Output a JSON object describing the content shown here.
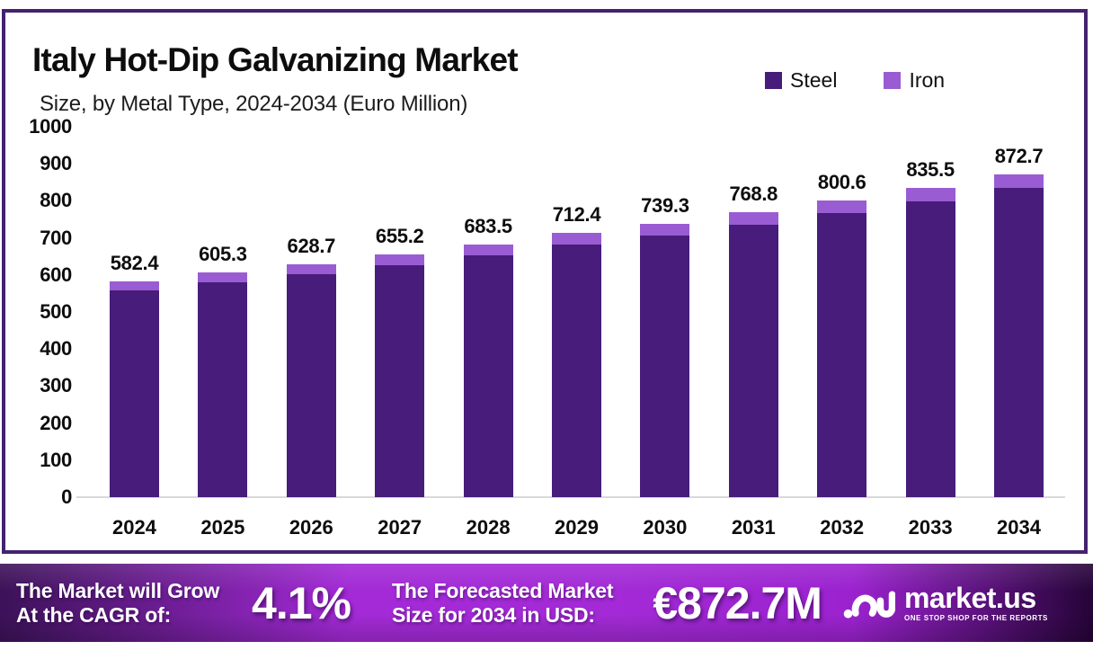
{
  "header": {
    "title": "Italy Hot-Dip Galvanizing Market",
    "subtitle": "Size, by Metal Type, 2024-2034 (Euro Million)"
  },
  "card": {
    "border_color": "#44226f"
  },
  "legend": [
    {
      "label": "Steel",
      "color": "#481c7a"
    },
    {
      "label": "Iron",
      "color": "#9a5cd2"
    }
  ],
  "chart_data": {
    "type": "bar",
    "stacked": true,
    "title": "Italy Hot-Dip Galvanizing Market Size, by Metal Type, 2024-2034 (Euro Million)",
    "xlabel": "",
    "ylabel": "",
    "ylim": [
      0,
      1000
    ],
    "yticks": [
      0,
      100,
      200,
      300,
      400,
      500,
      600,
      700,
      800,
      900,
      1000
    ],
    "grid": false,
    "legend_position": "top-right",
    "categories": [
      "2024",
      "2025",
      "2026",
      "2027",
      "2028",
      "2029",
      "2030",
      "2031",
      "2032",
      "2033",
      "2034"
    ],
    "totals": [
      582.4,
      605.3,
      628.7,
      655.2,
      683.5,
      712.4,
      739.3,
      768.8,
      800.6,
      835.5,
      872.7
    ],
    "series": [
      {
        "name": "Steel",
        "color": "#481c7a",
        "values": [
          557.4,
          579.3,
          601.7,
          627.0,
          654.1,
          681.8,
          707.5,
          735.7,
          766.2,
          799.6,
          835.2
        ]
      },
      {
        "name": "Iron",
        "color": "#9a5cd2",
        "values": [
          25.0,
          26.0,
          27.0,
          28.2,
          29.4,
          30.6,
          31.8,
          33.1,
          34.4,
          35.9,
          37.5
        ]
      }
    ]
  },
  "banner": {
    "cagr_line1": "The Market will Grow",
    "cagr_line2": "At the CAGR of:",
    "cagr_value": "4.1%",
    "forecast_line1": "The Forecasted Market",
    "forecast_line2": "Size for 2034 in USD:",
    "forecast_value": "€872.7M",
    "logo_text": "market.us",
    "logo_tagline": "ONE STOP SHOP FOR THE REPORTS",
    "gradient": [
      "#3c1258",
      "#a32ad6",
      "#9b22cf",
      "#250437"
    ]
  }
}
